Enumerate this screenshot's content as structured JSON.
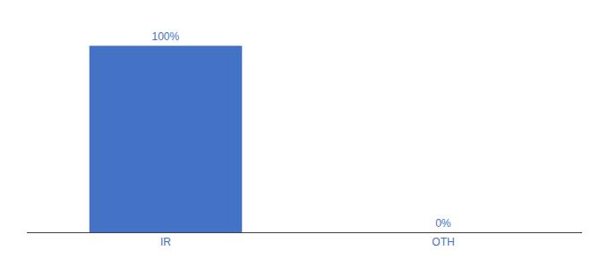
{
  "chart_data": {
    "type": "bar",
    "categories": [
      "IR",
      "OTH"
    ],
    "values": [
      100,
      0
    ],
    "value_labels": [
      "100%",
      "0%"
    ],
    "data_labels": true,
    "color": "#4472c4",
    "ylim": [
      0,
      115
    ],
    "grid": false,
    "tick_labels": "x"
  }
}
